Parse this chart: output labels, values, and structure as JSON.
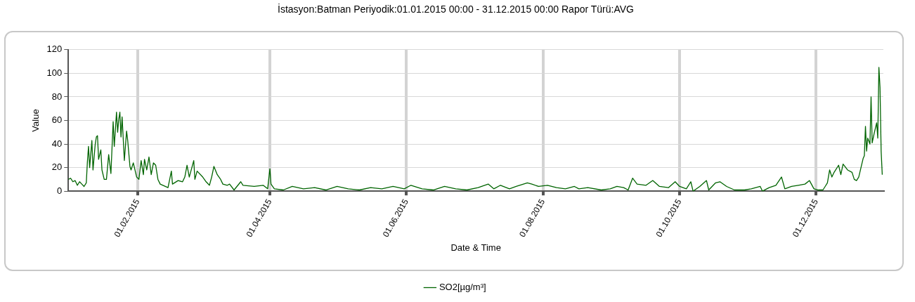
{
  "chart_data": {
    "type": "line",
    "title": "İstasyon:Batman Periyodik:01.01.2015 00:00 - 31.12.2015 00:00 Rapor Türü:AVG",
    "xlabel": "Date & Time",
    "ylabel": "Value",
    "xlim": [
      "2015-01-01",
      "2015-12-31"
    ],
    "xticks": [
      {
        "value": "2015-02-01",
        "label": "01.02.2015"
      },
      {
        "value": "2015-04-01",
        "label": "01.04.2015"
      },
      {
        "value": "2015-06-01",
        "label": "01.06.2015"
      },
      {
        "value": "2015-08-01",
        "label": "01.08.2015"
      },
      {
        "value": "2015-10-01",
        "label": "01.10.2015"
      },
      {
        "value": "2015-12-01",
        "label": "01.12.2015"
      }
    ],
    "ylim": [
      0,
      120
    ],
    "yticks": [
      0,
      20,
      40,
      60,
      80,
      100,
      120
    ],
    "grid": true,
    "legend": "bottom",
    "marker": "none",
    "line_style": "solid",
    "x": [
      "2015-01-01",
      "2015-01-02",
      "2015-01-03",
      "2015-01-04",
      "2015-01-05",
      "2015-01-06",
      "2015-01-07",
      "2015-01-08",
      "2015-01-09",
      "2015-01-09T12:00",
      "2015-01-10",
      "2015-01-10T12:00",
      "2015-01-11T12:00",
      "2015-01-12",
      "2015-01-13",
      "2015-01-13T12:00",
      "2015-01-14",
      "2015-01-14T12:00",
      "2015-01-15T12:00",
      "2015-01-16",
      "2015-01-17",
      "2015-01-18",
      "2015-01-19",
      "2015-01-20",
      "2015-01-21",
      "2015-01-21T12:00",
      "2015-01-22T12:00",
      "2015-01-23",
      "2015-01-23T12:00",
      "2015-01-24",
      "2015-01-24T12:00",
      "2015-01-25",
      "2015-01-26",
      "2015-01-27",
      "2015-01-27T12:00",
      "2015-01-28T12:00",
      "2015-01-29",
      "2015-01-30",
      "2015-01-31T12:00",
      "2015-02-01T12:00",
      "2015-02-02T12:00",
      "2015-02-03T12:00",
      "2015-02-04",
      "2015-02-05",
      "2015-02-06",
      "2015-02-07",
      "2015-02-08",
      "2015-02-09",
      "2015-02-10",
      "2015-02-11",
      "2015-02-14T12:00",
      "2015-02-16",
      "2015-02-16T12:00",
      "2015-02-19",
      "2015-02-21",
      "2015-02-22",
      "2015-02-23",
      "2015-02-24",
      "2015-02-26",
      "2015-02-26T12:00",
      "2015-02-27T12:00",
      "2015-03-02",
      "2015-03-03T12:00",
      "2015-03-05",
      "2015-03-06",
      "2015-03-07",
      "2015-03-08T12:00",
      "2015-03-10",
      "2015-03-11",
      "2015-03-13",
      "2015-03-14",
      "2015-03-16",
      "2015-03-19",
      "2015-03-20",
      "2015-03-25",
      "2015-03-29",
      "2015-03-31",
      "2015-04-01",
      "2015-04-01T12:00",
      "2015-04-03",
      "2015-04-07",
      "2015-04-11",
      "2015-04-16",
      "2015-04-21",
      "2015-04-26",
      "2015-05-01",
      "2015-05-06",
      "2015-05-11",
      "2015-05-16",
      "2015-05-21",
      "2015-05-26",
      "2015-05-31",
      "2015-06-03",
      "2015-06-08",
      "2015-06-13",
      "2015-06-18",
      "2015-06-23",
      "2015-06-28",
      "2015-07-03",
      "2015-07-07T12:00",
      "2015-07-10",
      "2015-07-13",
      "2015-07-17",
      "2015-07-20",
      "2015-07-25",
      "2015-07-27",
      "2015-07-30",
      "2015-08-03",
      "2015-08-07",
      "2015-08-11",
      "2015-08-15",
      "2015-08-17",
      "2015-08-21",
      "2015-08-27",
      "2015-08-31",
      "2015-09-03",
      "2015-09-06",
      "2015-09-08",
      "2015-09-10",
      "2015-09-12",
      "2015-09-16",
      "2015-09-19",
      "2015-09-22",
      "2015-09-26",
      "2015-09-29",
      "2015-10-01",
      "2015-10-04",
      "2015-10-06",
      "2015-10-07",
      "2015-10-10",
      "2015-10-13",
      "2015-10-14",
      "2015-10-17",
      "2015-10-19",
      "2015-10-22",
      "2015-10-25T12:00",
      "2015-10-30",
      "2015-11-02",
      "2015-11-06",
      "2015-11-07",
      "2015-11-10",
      "2015-11-13",
      "2015-11-15T12:00",
      "2015-11-17",
      "2015-11-20",
      "2015-11-23",
      "2015-11-26",
      "2015-11-28",
      "2015-11-30",
      "2015-12-02",
      "2015-12-04",
      "2015-12-05",
      "2015-12-06",
      "2015-12-07",
      "2015-12-08",
      "2015-12-09",
      "2015-12-11",
      "2015-12-12",
      "2015-12-13",
      "2015-12-15",
      "2015-12-17",
      "2015-12-18",
      "2015-12-19",
      "2015-12-20",
      "2015-12-21",
      "2015-12-22",
      "2015-12-22T12:00",
      "2015-12-23",
      "2015-12-23T12:00",
      "2015-12-24",
      "2015-12-25",
      "2015-12-25T12:00",
      "2015-12-26",
      "2015-12-27",
      "2015-12-28",
      "2015-12-28T12:00",
      "2015-12-29",
      "2015-12-29T12:00",
      "2015-12-30",
      "2015-12-30T12:00"
    ],
    "series": [
      {
        "name": "SO2[µg/m³]",
        "color": "#006400",
        "values": [
          10,
          11,
          8,
          9,
          5,
          8,
          6,
          4,
          7,
          25,
          38,
          20,
          43,
          18,
          40,
          46,
          47,
          27,
          35,
          18,
          10,
          10,
          31,
          15,
          59,
          38,
          67,
          50,
          61,
          67,
          46,
          63,
          26,
          51,
          43,
          21,
          18,
          24,
          12,
          10,
          26,
          14,
          27,
          18,
          29,
          14,
          24,
          22,
          10,
          6,
          3,
          17,
          6,
          9,
          8,
          12,
          22,
          12,
          26,
          10,
          17,
          12,
          8,
          5,
          12,
          21,
          14,
          10,
          6,
          5,
          6,
          1,
          8,
          5,
          4,
          5,
          2,
          19,
          6,
          2,
          1,
          4,
          2,
          3,
          1,
          4,
          2,
          1,
          3,
          2,
          4,
          2,
          5,
          2,
          1,
          4,
          2,
          1,
          3,
          6,
          2,
          5,
          2,
          4,
          7,
          6,
          4,
          5,
          3,
          2,
          4,
          2,
          3,
          1,
          2,
          4,
          3,
          1,
          11,
          6,
          5,
          9,
          4,
          3,
          8,
          4,
          2,
          8,
          0,
          4,
          9,
          1,
          7,
          8,
          4,
          1,
          1,
          2,
          4,
          0,
          3,
          5,
          12,
          2,
          4,
          5,
          6,
          9,
          2,
          1,
          1,
          4,
          7,
          18,
          12,
          16,
          22,
          14,
          23,
          18,
          16,
          10,
          9,
          12,
          20,
          28,
          30,
          55,
          34,
          45,
          40,
          80,
          41,
          50,
          58,
          45,
          105,
          88,
          34,
          14
        ]
      }
    ]
  }
}
